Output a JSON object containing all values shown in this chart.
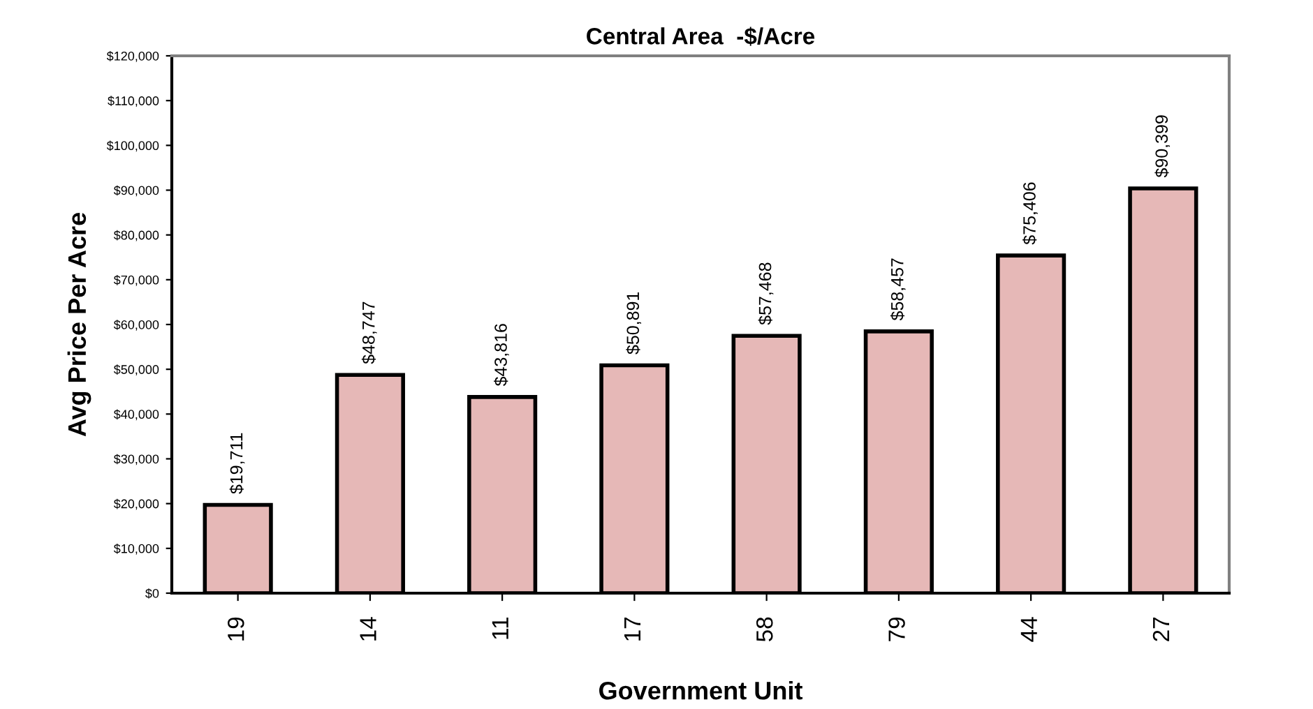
{
  "chart_data": {
    "type": "bar",
    "title": "Central Area  -$/Acre",
    "xlabel": "Government Unit",
    "ylabel": "Avg Price Per Acre",
    "categories": [
      "19",
      "14",
      "11",
      "17",
      "58",
      "79",
      "44",
      "27"
    ],
    "values": [
      19711,
      48747,
      43816,
      50891,
      57468,
      58457,
      75406,
      90399
    ],
    "value_labels": [
      "$19,711",
      "$48,747",
      "$43,816",
      "$50,891",
      "$57,468",
      "$58,457",
      "$75,406",
      "$90,399"
    ],
    "color": "#e6b8b7",
    "ylim": [
      0,
      120000
    ],
    "yticks": [
      {
        "value": 0,
        "label": "$0"
      },
      {
        "value": 10000,
        "label": "$10,000"
      },
      {
        "value": 20000,
        "label": "$20,000"
      },
      {
        "value": 30000,
        "label": "$30,000"
      },
      {
        "value": 40000,
        "label": "$40,000"
      },
      {
        "value": 50000,
        "label": "$50,000"
      },
      {
        "value": 60000,
        "label": "$60,000"
      },
      {
        "value": 70000,
        "label": "$70,000"
      },
      {
        "value": 80000,
        "label": "$80,000"
      },
      {
        "value": 90000,
        "label": "$90,000"
      },
      {
        "value": 100000,
        "label": "$100,000"
      },
      {
        "value": 110000,
        "label": "$110,000"
      },
      {
        "value": 120000,
        "label": "$120,000"
      }
    ],
    "grid": false,
    "legend": false
  }
}
